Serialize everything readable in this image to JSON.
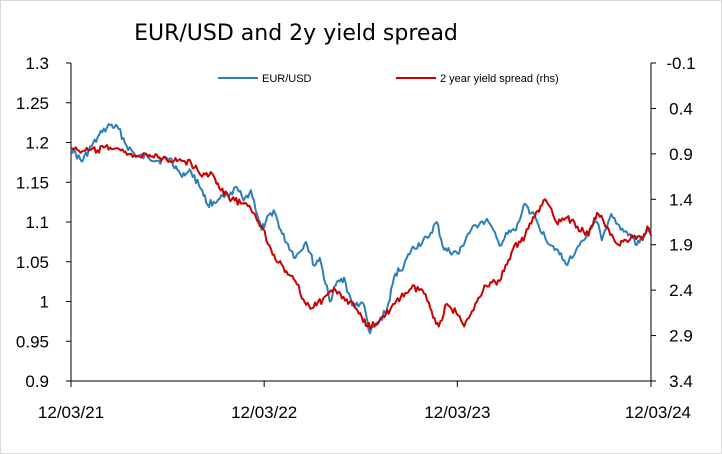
{
  "chart_data": {
    "type": "line",
    "title": "EUR/USD and 2y yield spread",
    "x_ticks": [
      "12/03/21",
      "12/03/22",
      "12/03/23",
      "12/03/24"
    ],
    "y_left": {
      "ticks": [
        "0.9",
        "0.95",
        "1",
        "1.05",
        "1.1",
        "1.15",
        "1.2",
        "1.25",
        "1.3"
      ],
      "min": 0.9,
      "max": 1.3
    },
    "y_right": {
      "ticks": [
        "-0.1",
        "0.4",
        "0.9",
        "1.4",
        "1.9",
        "2.4",
        "2.9",
        "3.4"
      ],
      "min": -0.1,
      "max": 3.4,
      "inverted": true
    },
    "x_range": [
      "2021-03-12",
      "2024-03-12"
    ],
    "legend_position": "top",
    "grid": false,
    "series": [
      {
        "name": "EUR/USD",
        "axis": "left",
        "color": "#2e7fb8",
        "points": [
          [
            "2021-03-12",
            1.193
          ],
          [
            "2021-04-01",
            1.176
          ],
          [
            "2021-04-20",
            1.195
          ],
          [
            "2021-05-10",
            1.213
          ],
          [
            "2021-05-25",
            1.222
          ],
          [
            "2021-06-10",
            1.217
          ],
          [
            "2021-06-25",
            1.196
          ],
          [
            "2021-07-15",
            1.182
          ],
          [
            "2021-08-05",
            1.182
          ],
          [
            "2021-08-25",
            1.177
          ],
          [
            "2021-09-15",
            1.18
          ],
          [
            "2021-10-05",
            1.16
          ],
          [
            "2021-10-25",
            1.163
          ],
          [
            "2021-11-15",
            1.14
          ],
          [
            "2021-11-25",
            1.122
          ],
          [
            "2021-12-15",
            1.128
          ],
          [
            "2022-01-05",
            1.133
          ],
          [
            "2022-01-20",
            1.143
          ],
          [
            "2022-02-01",
            1.127
          ],
          [
            "2022-02-15",
            1.14
          ],
          [
            "2022-03-07",
            1.09
          ],
          [
            "2022-03-15",
            1.1
          ],
          [
            "2022-03-30",
            1.115
          ],
          [
            "2022-04-15",
            1.085
          ],
          [
            "2022-05-10",
            1.055
          ],
          [
            "2022-05-30",
            1.075
          ],
          [
            "2022-06-15",
            1.045
          ],
          [
            "2022-06-25",
            1.055
          ],
          [
            "2022-07-14",
            1.0
          ],
          [
            "2022-07-25",
            1.02
          ],
          [
            "2022-08-10",
            1.03
          ],
          [
            "2022-08-25",
            0.995
          ],
          [
            "2022-09-15",
            0.998
          ],
          [
            "2022-09-28",
            0.96
          ],
          [
            "2022-10-15",
            0.975
          ],
          [
            "2022-10-30",
            0.99
          ],
          [
            "2022-11-15",
            1.035
          ],
          [
            "2022-12-01",
            1.045
          ],
          [
            "2022-12-15",
            1.065
          ],
          [
            "2023-01-15",
            1.08
          ],
          [
            "2023-02-01",
            1.1
          ],
          [
            "2023-02-15",
            1.065
          ],
          [
            "2023-03-15",
            1.06
          ],
          [
            "2023-04-01",
            1.085
          ],
          [
            "2023-04-25",
            1.1
          ],
          [
            "2023-05-10",
            1.1
          ],
          [
            "2023-05-31",
            1.07
          ],
          [
            "2023-06-15",
            1.085
          ],
          [
            "2023-07-01",
            1.09
          ],
          [
            "2023-07-18",
            1.123
          ],
          [
            "2023-08-10",
            1.1
          ],
          [
            "2023-08-25",
            1.08
          ],
          [
            "2023-09-15",
            1.066
          ],
          [
            "2023-10-03",
            1.047
          ],
          [
            "2023-10-20",
            1.06
          ],
          [
            "2023-11-15",
            1.085
          ],
          [
            "2023-12-01",
            1.1
          ],
          [
            "2023-12-10",
            1.077
          ],
          [
            "2023-12-28",
            1.11
          ],
          [
            "2024-01-15",
            1.09
          ],
          [
            "2024-02-01",
            1.085
          ],
          [
            "2024-02-14",
            1.071
          ],
          [
            "2024-03-01",
            1.085
          ],
          [
            "2024-03-12",
            1.093
          ]
        ]
      },
      {
        "name": "2 year yield spread (rhs)",
        "axis": "right",
        "color": "#cc0000",
        "points": [
          [
            "2021-03-12",
            0.85
          ],
          [
            "2021-04-05",
            0.87
          ],
          [
            "2021-05-01",
            0.86
          ],
          [
            "2021-05-25",
            0.83
          ],
          [
            "2021-06-20",
            0.88
          ],
          [
            "2021-07-15",
            0.92
          ],
          [
            "2021-08-10",
            0.93
          ],
          [
            "2021-09-01",
            0.95
          ],
          [
            "2021-10-01",
            0.97
          ],
          [
            "2021-10-25",
            1.0
          ],
          [
            "2021-11-15",
            1.15
          ],
          [
            "2021-12-01",
            1.1
          ],
          [
            "2021-12-20",
            1.3
          ],
          [
            "2022-01-10",
            1.4
          ],
          [
            "2022-02-01",
            1.45
          ],
          [
            "2022-02-20",
            1.55
          ],
          [
            "2022-03-07",
            1.7
          ],
          [
            "2022-03-25",
            1.95
          ],
          [
            "2022-04-20",
            2.2
          ],
          [
            "2022-05-10",
            2.3
          ],
          [
            "2022-05-25",
            2.5
          ],
          [
            "2022-06-10",
            2.6
          ],
          [
            "2022-07-01",
            2.5
          ],
          [
            "2022-07-25",
            2.4
          ],
          [
            "2022-08-15",
            2.5
          ],
          [
            "2022-09-01",
            2.6
          ],
          [
            "2022-09-15",
            2.75
          ],
          [
            "2022-10-01",
            2.8
          ],
          [
            "2022-10-20",
            2.7
          ],
          [
            "2022-11-05",
            2.62
          ],
          [
            "2022-11-25",
            2.48
          ],
          [
            "2022-12-15",
            2.38
          ],
          [
            "2023-01-05",
            2.4
          ],
          [
            "2023-01-20",
            2.6
          ],
          [
            "2023-02-05",
            2.8
          ],
          [
            "2023-02-20",
            2.55
          ],
          [
            "2023-03-10",
            2.65
          ],
          [
            "2023-03-25",
            2.8
          ],
          [
            "2023-04-15",
            2.55
          ],
          [
            "2023-05-05",
            2.35
          ],
          [
            "2023-05-31",
            2.3
          ],
          [
            "2023-06-25",
            1.95
          ],
          [
            "2023-07-18",
            1.8
          ],
          [
            "2023-08-05",
            1.6
          ],
          [
            "2023-08-25",
            1.4
          ],
          [
            "2023-09-15",
            1.65
          ],
          [
            "2023-10-05",
            1.6
          ],
          [
            "2023-10-25",
            1.7
          ],
          [
            "2023-11-15",
            1.8
          ],
          [
            "2023-12-01",
            1.55
          ],
          [
            "2023-12-20",
            1.7
          ],
          [
            "2024-01-10",
            1.9
          ],
          [
            "2024-01-25",
            1.85
          ],
          [
            "2024-02-10",
            1.8
          ],
          [
            "2024-02-25",
            1.85
          ],
          [
            "2024-03-05",
            1.7
          ],
          [
            "2024-03-12",
            1.8
          ]
        ]
      }
    ]
  }
}
